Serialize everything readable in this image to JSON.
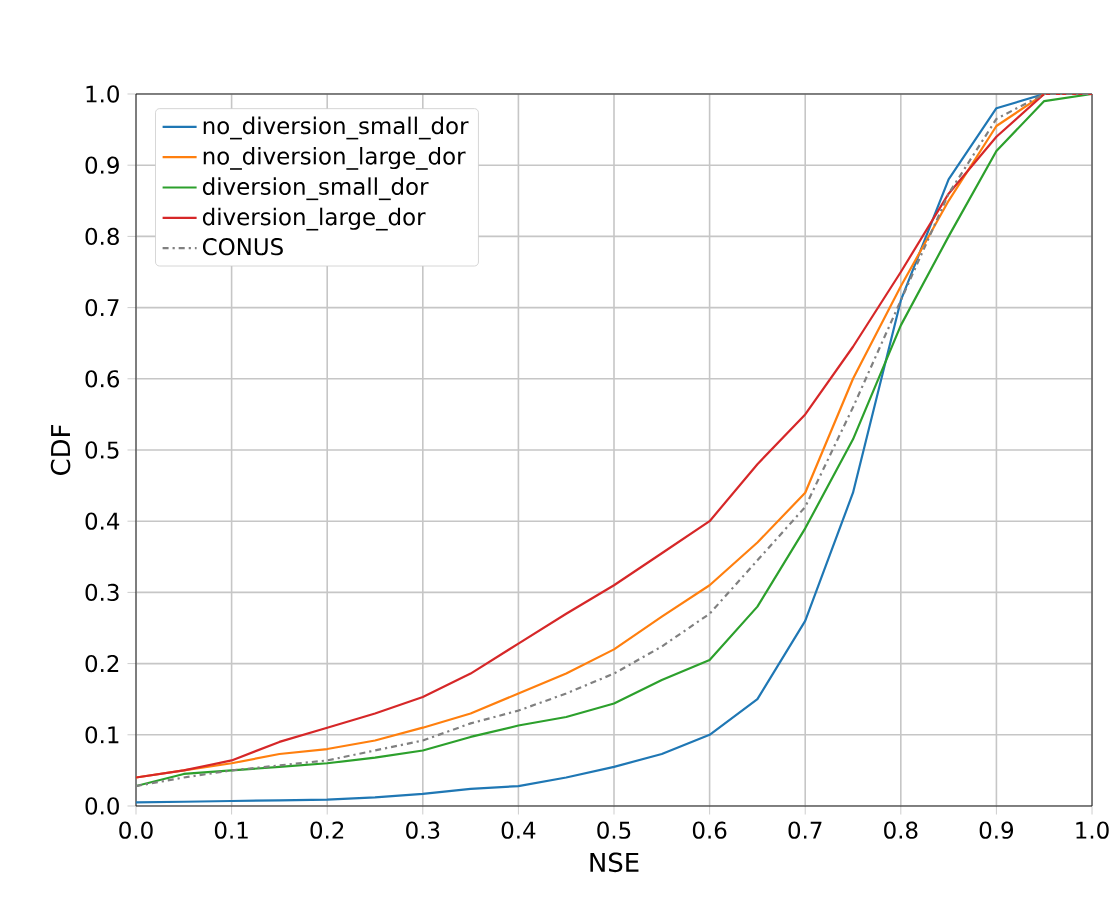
{
  "chart_data": {
    "type": "line",
    "xlabel": "NSE",
    "ylabel": "CDF",
    "xlim": [
      0.0,
      1.0
    ],
    "ylim": [
      0.0,
      1.0
    ],
    "xticks": [
      {
        "value": 0,
        "label": "0.0"
      },
      0.1,
      0.2,
      0.3,
      0.4,
      0.5,
      0.6,
      0.7,
      0.8,
      0.9,
      {
        "value": 1,
        "label": "1.0"
      }
    ],
    "yticks": [
      {
        "value": 0,
        "label": "0.0"
      },
      0.1,
      0.2,
      0.3,
      0.4,
      0.5,
      0.6,
      0.7,
      0.8,
      0.9,
      {
        "value": 1,
        "label": "1.0"
      }
    ],
    "grid": true,
    "legend": "top left",
    "x": [
      0.0,
      0.05,
      0.1,
      0.15,
      0.2,
      0.25,
      0.3,
      0.35,
      0.4,
      0.45,
      0.5,
      0.55,
      0.6,
      0.65,
      0.7,
      0.75,
      0.8,
      0.85,
      0.9,
      0.95,
      1.0
    ],
    "series": [
      {
        "name": "no_diversion_small_dor",
        "color": "#1f77b4",
        "line_style": "solid",
        "values": [
          0.005,
          0.006,
          0.007,
          0.008,
          0.009,
          0.012,
          0.017,
          0.024,
          0.028,
          0.04,
          0.055,
          0.073,
          0.1,
          0.15,
          0.26,
          0.44,
          0.71,
          0.88,
          0.98,
          1.0,
          1.0
        ]
      },
      {
        "name": "no_diversion_large_dor",
        "color": "#ff7f0e",
        "line_style": "solid",
        "values": [
          0.04,
          0.05,
          0.06,
          0.073,
          0.08,
          0.092,
          0.11,
          0.13,
          0.158,
          0.186,
          0.22,
          0.266,
          0.31,
          0.37,
          0.44,
          0.6,
          0.73,
          0.85,
          0.955,
          1.0,
          1.0
        ]
      },
      {
        "name": "diversion_small_dor",
        "color": "#2ca02c",
        "line_style": "solid",
        "values": [
          0.028,
          0.045,
          0.05,
          0.055,
          0.06,
          0.068,
          0.078,
          0.097,
          0.113,
          0.125,
          0.144,
          0.177,
          0.205,
          0.28,
          0.39,
          0.515,
          0.675,
          0.8,
          0.92,
          0.99,
          1.0
        ]
      },
      {
        "name": "diversion_large_dor",
        "color": "#d62728",
        "line_style": "solid",
        "values": [
          0.04,
          0.05,
          0.064,
          0.09,
          0.11,
          0.13,
          0.153,
          0.186,
          0.228,
          0.27,
          0.31,
          0.355,
          0.4,
          0.48,
          0.55,
          0.645,
          0.75,
          0.86,
          0.94,
          1.0,
          1.0
        ]
      },
      {
        "name": "CONUS",
        "color": "#808080",
        "line_style": "dashdot",
        "values": [
          0.028,
          0.04,
          0.05,
          0.057,
          0.064,
          0.078,
          0.092,
          0.116,
          0.134,
          0.158,
          0.186,
          0.224,
          0.27,
          0.345,
          0.42,
          0.56,
          0.71,
          0.86,
          0.965,
          1.0,
          1.0
        ]
      }
    ]
  }
}
